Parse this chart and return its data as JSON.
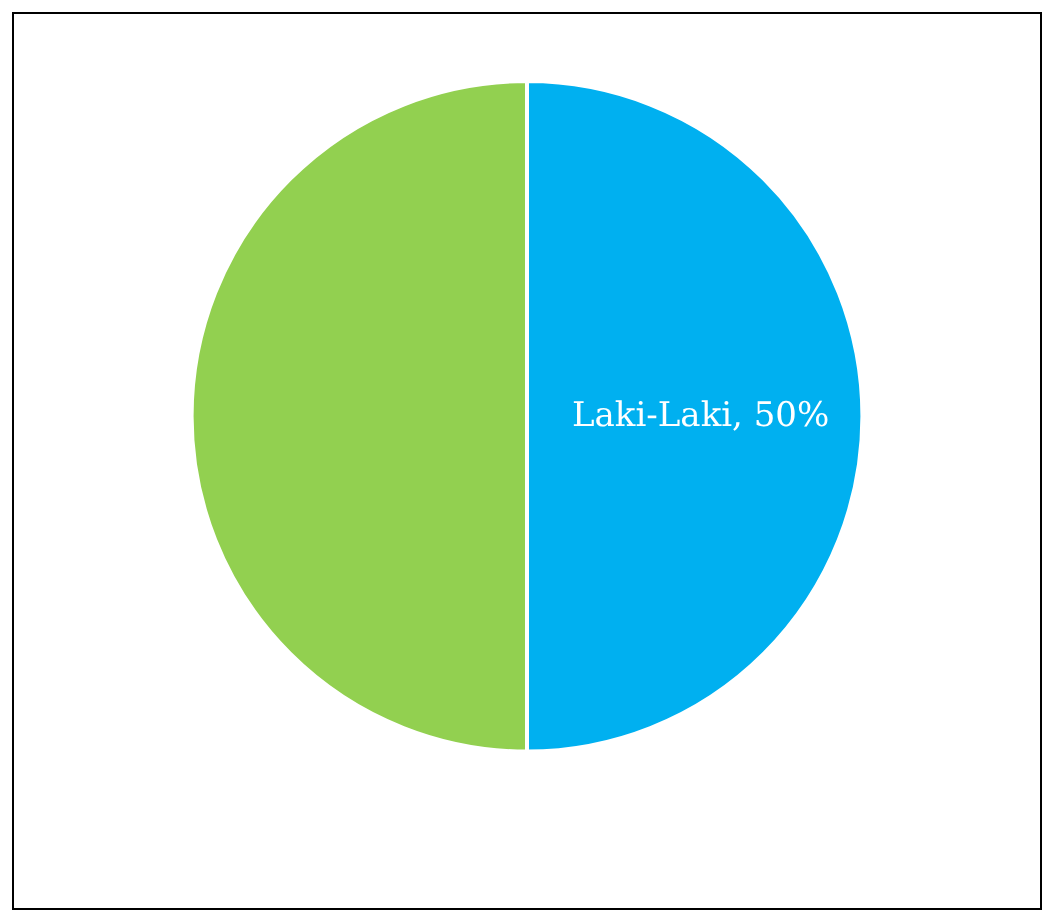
{
  "chart_data": {
    "type": "pie",
    "categories": [
      "Laki-Laki",
      null
    ],
    "values": [
      50,
      50
    ],
    "colors": [
      "#00b0f0",
      "#92d050"
    ],
    "value_labels": [
      "50%",
      null
    ],
    "legend": false
  }
}
